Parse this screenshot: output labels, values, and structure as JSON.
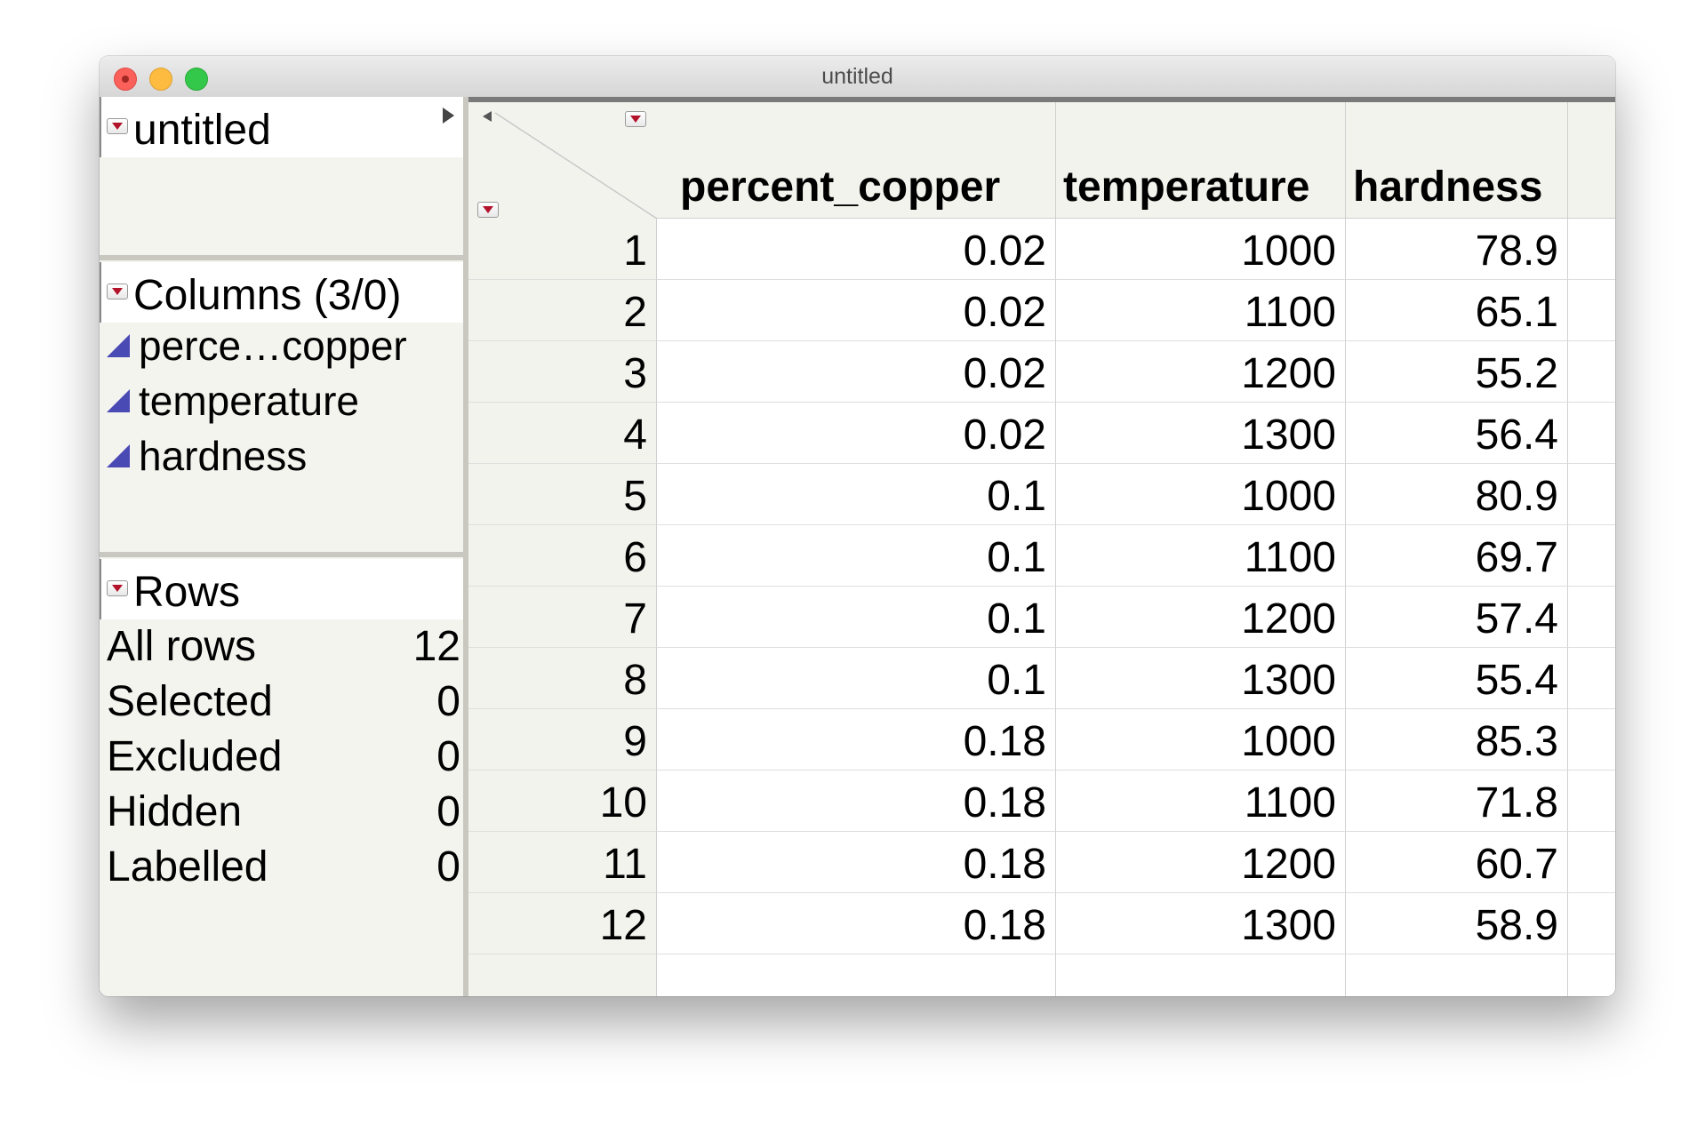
{
  "window": {
    "title": "untitled"
  },
  "left_panel": {
    "table_panel": {
      "title": "untitled"
    },
    "columns_panel": {
      "title": "Columns (3/0)",
      "items": [
        {
          "label": "perce…copper",
          "icon": "continuous-icon"
        },
        {
          "label": "temperature",
          "icon": "continuous-icon"
        },
        {
          "label": "hardness",
          "icon": "continuous-icon"
        }
      ]
    },
    "rows_panel": {
      "title": "Rows",
      "stats": [
        {
          "label": "All rows",
          "value": "12"
        },
        {
          "label": "Selected",
          "value": "0"
        },
        {
          "label": "Excluded",
          "value": "0"
        },
        {
          "label": "Hidden",
          "value": "0"
        },
        {
          "label": "Labelled",
          "value": "0"
        }
      ]
    }
  },
  "table": {
    "columns": [
      "percent_copper",
      "temperature",
      "hardness"
    ],
    "rows": [
      {
        "n": "1",
        "percent_copper": "0.02",
        "temperature": "1000",
        "hardness": "78.9"
      },
      {
        "n": "2",
        "percent_copper": "0.02",
        "temperature": "1100",
        "hardness": "65.1"
      },
      {
        "n": "3",
        "percent_copper": "0.02",
        "temperature": "1200",
        "hardness": "55.2"
      },
      {
        "n": "4",
        "percent_copper": "0.02",
        "temperature": "1300",
        "hardness": "56.4"
      },
      {
        "n": "5",
        "percent_copper": "0.1",
        "temperature": "1000",
        "hardness": "80.9"
      },
      {
        "n": "6",
        "percent_copper": "0.1",
        "temperature": "1100",
        "hardness": "69.7"
      },
      {
        "n": "7",
        "percent_copper": "0.1",
        "temperature": "1200",
        "hardness": "57.4"
      },
      {
        "n": "8",
        "percent_copper": "0.1",
        "temperature": "1300",
        "hardness": "55.4"
      },
      {
        "n": "9",
        "percent_copper": "0.18",
        "temperature": "1000",
        "hardness": "85.3"
      },
      {
        "n": "10",
        "percent_copper": "0.18",
        "temperature": "1100",
        "hardness": "71.8"
      },
      {
        "n": "11",
        "percent_copper": "0.18",
        "temperature": "1200",
        "hardness": "60.7"
      },
      {
        "n": "12",
        "percent_copper": "0.18",
        "temperature": "1300",
        "hardness": "58.9"
      }
    ]
  },
  "colors": {
    "accent_red": "#b3132a",
    "continuous_icon": "#4a4ab5"
  }
}
